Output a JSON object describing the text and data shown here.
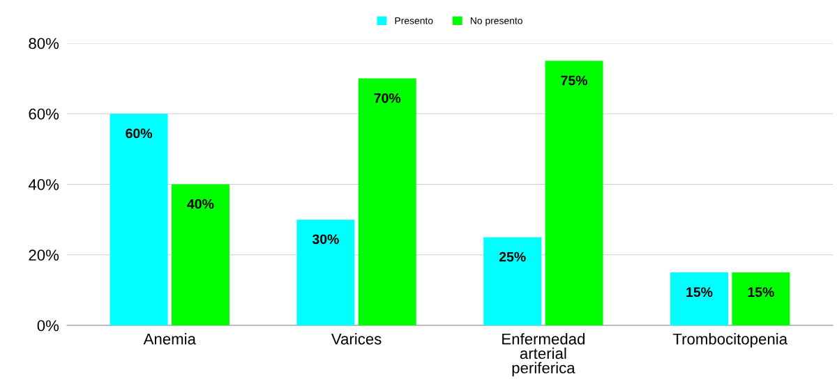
{
  "chart_data": {
    "type": "bar",
    "categories": [
      "Anemia",
      "Varices",
      "Enfermedad\narterial\nperiferica",
      "Trombocitopenia"
    ],
    "series": [
      {
        "name": "Presento",
        "color": "#00ffff",
        "values": [
          60,
          30,
          25,
          15
        ],
        "value_labels": [
          "60%",
          "30%",
          "25%",
          "15%"
        ]
      },
      {
        "name": "No presento",
        "color": "#00ff00",
        "values": [
          40,
          70,
          75,
          15
        ],
        "value_labels": [
          "40%",
          "70%",
          "75%",
          "15%"
        ]
      }
    ],
    "ylim": [
      0,
      80
    ],
    "yticks": [
      {
        "value": 0,
        "label": "0%"
      },
      {
        "value": 20,
        "label": "20%"
      },
      {
        "value": 40,
        "label": "40%"
      },
      {
        "value": 60,
        "label": "60%"
      },
      {
        "value": 80,
        "label": "80%"
      }
    ],
    "grid": "y",
    "legend": "top"
  }
}
